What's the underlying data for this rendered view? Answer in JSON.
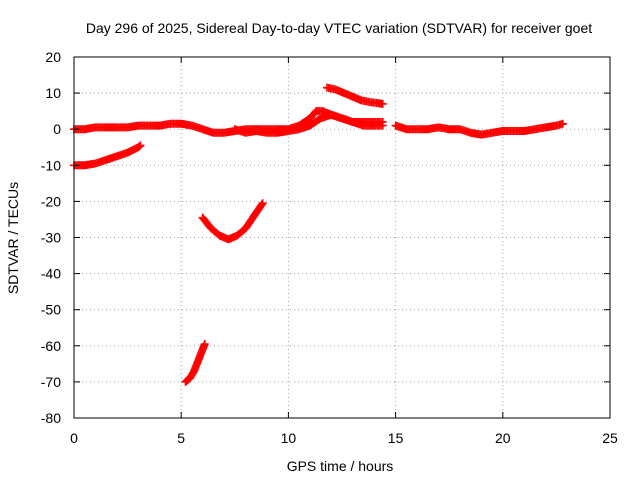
{
  "chart_data": {
    "type": "scatter",
    "title": "Day 296 of 2025, Sidereal Day-to-day VTEC variation (SDTVAR) for receiver goet",
    "xlabel": "GPS time / hours",
    "ylabel": "SDTVAR / TECUs",
    "xlim": [
      0,
      25
    ],
    "ylim": [
      -80,
      20
    ],
    "xticks": [
      0,
      5,
      10,
      15,
      20,
      25
    ],
    "yticks": [
      -80,
      -70,
      -60,
      -50,
      -40,
      -30,
      -20,
      -10,
      0,
      10,
      20
    ],
    "grid": true,
    "legend": "none",
    "marker": "+",
    "color": "#ff0000",
    "series": [
      {
        "name": "main-trace-a",
        "x": [
          0,
          0.5,
          1,
          1.5,
          2,
          2.5,
          3,
          3.5,
          4,
          4.5,
          5,
          5.5,
          6,
          6.5,
          7,
          7.5,
          8,
          8.5,
          9,
          9.5,
          10,
          10.5,
          11,
          11.3,
          11.6,
          12,
          12.5,
          13,
          13.5,
          14,
          14.4
        ],
        "y": [
          0,
          0,
          0.5,
          0.5,
          0.5,
          0.5,
          1,
          1,
          1,
          1.5,
          1.5,
          1,
          0,
          -1,
          -1,
          -0.5,
          0,
          0,
          0,
          0,
          0,
          1,
          3,
          5,
          5,
          4,
          3,
          2,
          2,
          2,
          2
        ]
      },
      {
        "name": "main-trace-b",
        "x": [
          7.5,
          8,
          8.5,
          9,
          9.5,
          10,
          10.5,
          11,
          11.5,
          12,
          12.5,
          13,
          13.5,
          14,
          14.4
        ],
        "y": [
          0,
          -1,
          -0.5,
          -1,
          -1,
          -0.5,
          0,
          1,
          3,
          4,
          3,
          2,
          1,
          1,
          1
        ]
      },
      {
        "name": "main-trace-c",
        "x": [
          15,
          15.5,
          16,
          16.5,
          17,
          17.5,
          18,
          18.5,
          19,
          19.5,
          20,
          20.5,
          21,
          21.5,
          22,
          22.5,
          22.8
        ],
        "y": [
          1,
          0,
          0,
          0,
          0.5,
          0,
          0,
          -1,
          -1.5,
          -1,
          -0.5,
          -0.5,
          -0.5,
          0,
          0.5,
          1,
          1.5
        ]
      },
      {
        "name": "upper-arc",
        "x": [
          11.8,
          12.2,
          12.6,
          13,
          13.4,
          13.8,
          14.2,
          14.4
        ],
        "y": [
          11.5,
          11,
          10,
          9,
          8,
          7.5,
          7.2,
          7
        ]
      },
      {
        "name": "lower-start",
        "x": [
          0,
          0.5,
          1,
          1.5,
          2,
          2.5,
          3,
          3.1
        ],
        "y": [
          -10,
          -10,
          -9.5,
          -8.5,
          -7.5,
          -6.5,
          -5,
          -4.5
        ]
      },
      {
        "name": "valley-arc",
        "x": [
          6,
          6.4,
          6.8,
          7.2,
          7.6,
          8,
          8.4,
          8.8
        ],
        "y": [
          -24.5,
          -27.5,
          -29.5,
          -30.5,
          -29.5,
          -27.5,
          -24,
          -20.5
        ]
      },
      {
        "name": "deep-segment",
        "x": [
          5.2,
          5.4,
          5.6,
          5.8,
          6,
          6.1
        ],
        "y": [
          -70,
          -69,
          -67,
          -64,
          -61,
          -59.5
        ]
      }
    ]
  }
}
